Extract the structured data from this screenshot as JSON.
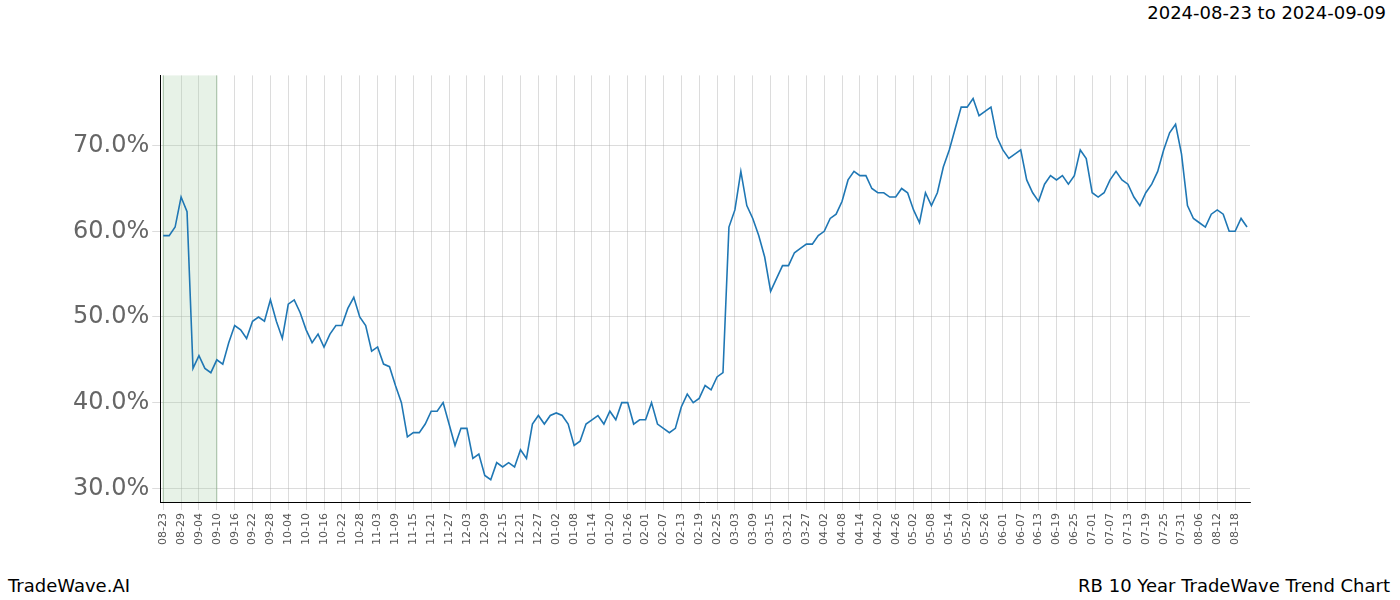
{
  "chart_data": {
    "type": "line",
    "title": "2024-08-23 to 2024-09-09",
    "footer_left": "TradeWave.AI",
    "footer_right": "RB 10 Year TradeWave Trend Chart",
    "categories": [
      "08-23",
      null,
      null,
      "08-29",
      null,
      null,
      "09-04",
      null,
      null,
      "09-10",
      null,
      null,
      "09-16",
      null,
      null,
      "09-22",
      null,
      null,
      "09-28",
      null,
      null,
      "10-04",
      null,
      null,
      "10-10",
      null,
      null,
      "10-16",
      null,
      null,
      "10-22",
      null,
      null,
      "10-28",
      null,
      null,
      "11-03",
      null,
      null,
      "11-09",
      null,
      null,
      "11-15",
      null,
      null,
      "11-21",
      null,
      null,
      "11-27",
      null,
      null,
      "12-03",
      null,
      null,
      "12-09",
      null,
      null,
      "12-15",
      null,
      null,
      "12-21",
      null,
      null,
      "12-27",
      null,
      null,
      "01-02",
      null,
      null,
      "01-08",
      null,
      null,
      "01-14",
      null,
      null,
      "01-20",
      null,
      null,
      "01-26",
      null,
      null,
      "02-01",
      null,
      null,
      "02-07",
      null,
      null,
      "02-13",
      null,
      null,
      "02-19",
      null,
      null,
      "02-25",
      null,
      null,
      "03-03",
      null,
      null,
      "03-09",
      null,
      null,
      "03-15",
      null,
      null,
      "03-21",
      null,
      null,
      "03-27",
      null,
      null,
      "04-02",
      null,
      null,
      "04-08",
      null,
      null,
      "04-14",
      null,
      null,
      "04-20",
      null,
      null,
      "04-26",
      null,
      null,
      "05-02",
      null,
      null,
      "05-08",
      null,
      null,
      "05-14",
      null,
      null,
      "05-20",
      null,
      null,
      "05-26",
      null,
      null,
      "06-01",
      null,
      null,
      "06-07",
      null,
      null,
      "06-13",
      null,
      null,
      "06-19",
      null,
      null,
      "06-25",
      null,
      null,
      "07-01",
      null,
      null,
      "07-07",
      null,
      null,
      "07-13",
      null,
      null,
      "07-19",
      null,
      null,
      "07-25",
      null,
      null,
      "07-31",
      null,
      null,
      "08-06",
      null,
      null,
      "08-12",
      null,
      null,
      "08-18",
      null,
      null
    ],
    "values": [
      59.5,
      59.5,
      60.5,
      64,
      62.3,
      44,
      45.5,
      44,
      43.5,
      45,
      44.5,
      47,
      49,
      48.5,
      47.5,
      49.5,
      50,
      49.5,
      52,
      49.5,
      47.5,
      51.5,
      52,
      50.5,
      48.5,
      47,
      48,
      46.5,
      48,
      49,
      49,
      51,
      52.3,
      50,
      49,
      46,
      46.5,
      44.5,
      44.2,
      42,
      40,
      36,
      36.5,
      36.5,
      37.5,
      39,
      39,
      40,
      37.5,
      35,
      37,
      37,
      33.5,
      34,
      31.5,
      31,
      33,
      32.5,
      33,
      32.5,
      34.5,
      33.5,
      37.5,
      38.5,
      37.5,
      38.5,
      38.8,
      38.5,
      37.5,
      35,
      35.5,
      37.5,
      38,
      38.5,
      37.5,
      39,
      38,
      40,
      40,
      37.5,
      38,
      38,
      40,
      37.5,
      37,
      36.5,
      37,
      39.5,
      41,
      40,
      40.5,
      42,
      41.5,
      43,
      43.5,
      60.5,
      62.5,
      67,
      63,
      61.5,
      59.5,
      57,
      53,
      54.5,
      56,
      56,
      57.5,
      58,
      58.5,
      58.5,
      59.5,
      60,
      61.5,
      62,
      63.5,
      66,
      67,
      66.5,
      66.5,
      65,
      64.5,
      64.5,
      64,
      64,
      65,
      64.5,
      62.5,
      61,
      64.5,
      63,
      64.5,
      67.5,
      69.5,
      72,
      74.5,
      74.5,
      75.5,
      73.5,
      74,
      74.5,
      71,
      69.5,
      68.5,
      69,
      69.5,
      66,
      64.5,
      63.5,
      65.5,
      66.5,
      66,
      66.5,
      65.5,
      66.5,
      69.5,
      68.5,
      64.5,
      64,
      64.5,
      66,
      67,
      66,
      65.5,
      64,
      63,
      64.5,
      65.5,
      67,
      69.5,
      71.5,
      72.5,
      69,
      63,
      61.5,
      61,
      60.5,
      62,
      62.5,
      62,
      60,
      60,
      61.5,
      60.5
    ],
    "color": "#1f77b4",
    "ylim": [
      28.4,
      78.2
    ],
    "yticks": [
      {
        "value": 30,
        "label": "30.0%"
      },
      {
        "value": 40,
        "label": "40.0%"
      },
      {
        "value": 50,
        "label": "50.0%"
      },
      {
        "value": 60,
        "label": "60.0%"
      },
      {
        "value": 70,
        "label": "70.0%"
      }
    ],
    "shaded": {
      "from": "08-23",
      "to": "09-10"
    },
    "grid": true
  }
}
